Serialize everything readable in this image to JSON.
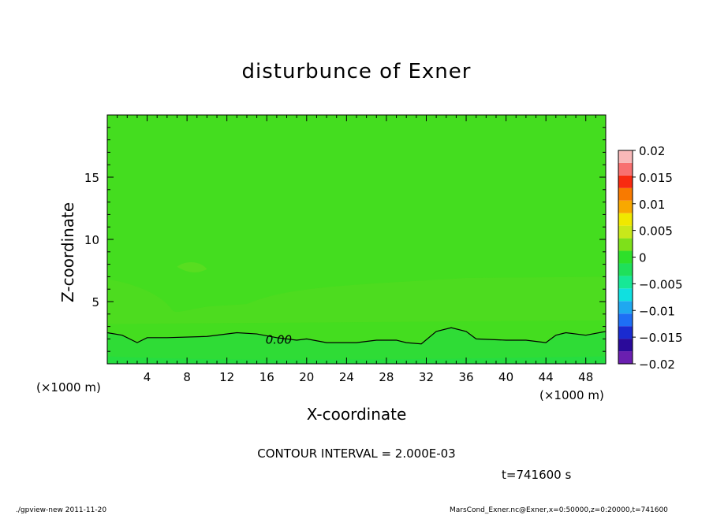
{
  "chart_data": {
    "type": "heatmap",
    "title": "disturbunce of Exner",
    "xlabel": "X-coordinate",
    "ylabel": "Z-coordinate",
    "x_unit_label": "(×1000 m)",
    "y_unit_label": "(×1000 m)",
    "xlim": [
      0,
      50
    ],
    "ylim": [
      0,
      20
    ],
    "x_ticks": [
      4,
      8,
      12,
      16,
      20,
      24,
      28,
      32,
      36,
      40,
      44,
      48
    ],
    "y_ticks": [
      5,
      10,
      15
    ],
    "colorbar": {
      "levels": [
        -0.02,
        -0.0175,
        -0.015,
        -0.0125,
        -0.01,
        -0.0075,
        -0.005,
        -0.0025,
        0,
        0.0025,
        0.005,
        0.0075,
        0.01,
        0.0125,
        0.015,
        0.0175,
        0.02
      ],
      "colors": [
        "#6a1fb0",
        "#2a0a9a",
        "#1a2bd0",
        "#1e6ff5",
        "#1fa8f0",
        "#10e0e0",
        "#16e896",
        "#1fe05a",
        "#2ee02a",
        "#7ee01a",
        "#c8e81a",
        "#f0e800",
        "#f8a800",
        "#f87a00",
        "#f82a10",
        "#f87070",
        "#f8b8b8"
      ],
      "tick_labels": [
        "0.02",
        "0.015",
        "0.01",
        "0.005",
        "0",
        "−0.005",
        "−0.01",
        "−0.015",
        "−0.02"
      ],
      "tick_values": [
        0.02,
        0.015,
        0.01,
        0.005,
        0,
        -0.005,
        -0.01,
        -0.015,
        -0.02
      ]
    },
    "contour_zero_label": "0.00",
    "contour_zero_line": {
      "x": [
        0,
        1.5,
        3,
        4,
        6,
        10,
        13,
        15,
        17,
        19,
        20,
        22,
        25,
        27,
        29,
        30,
        31.5,
        33,
        34.5,
        36,
        37,
        40,
        42,
        44,
        45,
        46,
        48,
        50
      ],
      "z": [
        2.5,
        2.3,
        1.7,
        2.1,
        2.1,
        2.2,
        2.5,
        2.4,
        2.1,
        1.9,
        2.0,
        1.7,
        1.7,
        1.9,
        1.9,
        1.7,
        1.6,
        2.6,
        2.9,
        2.6,
        2.0,
        1.9,
        1.9,
        1.7,
        2.3,
        2.5,
        2.3,
        2.6
      ]
    }
  },
  "contour_interval_text": "CONTOUR INTERVAL = 2.000E-03",
  "time_text": "t=741600 s",
  "footer_left": "./gpview-new  2011-11-20",
  "footer_right": "MarsCond_Exner.nc@Exner,x=0:50000,z=0:20000,t=741600"
}
